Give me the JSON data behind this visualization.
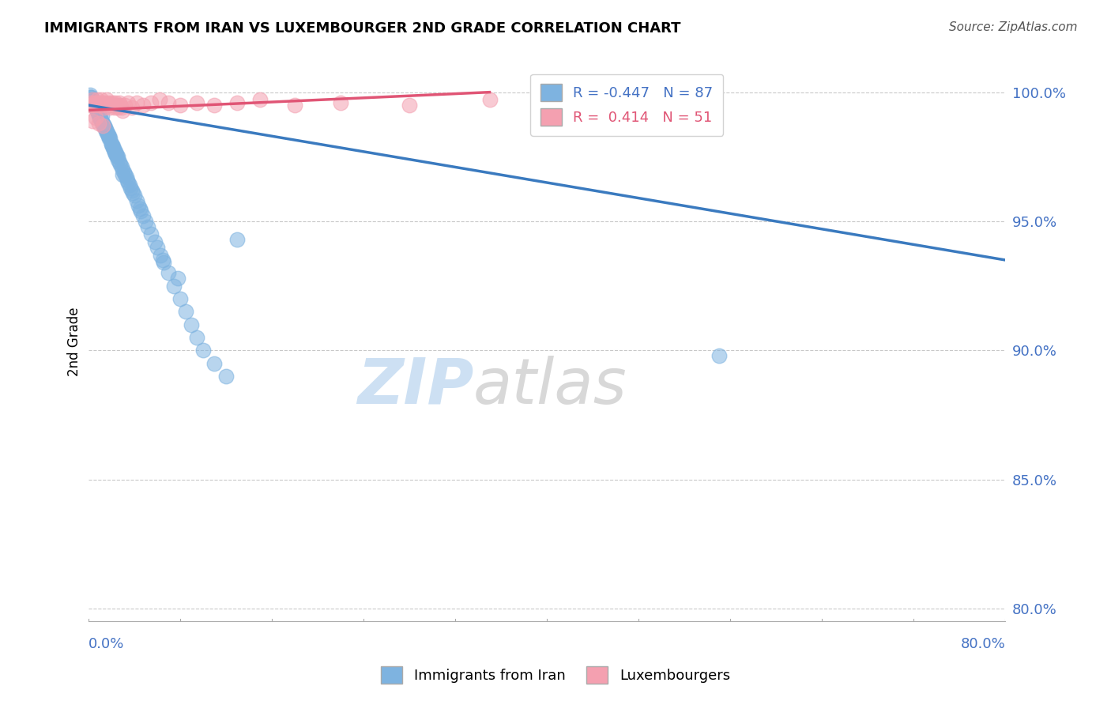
{
  "title": "IMMIGRANTS FROM IRAN VS LUXEMBOURGER 2ND GRADE CORRELATION CHART",
  "source": "Source: ZipAtlas.com",
  "ylabel": "2nd Grade",
  "yticks": [
    80.0,
    85.0,
    90.0,
    95.0,
    100.0
  ],
  "xlim": [
    0.0,
    80.0
  ],
  "ylim": [
    79.5,
    101.2
  ],
  "blue_R": -0.447,
  "blue_N": 87,
  "pink_R": 0.414,
  "pink_N": 51,
  "blue_color": "#7eb3e0",
  "pink_color": "#f4a0b0",
  "blue_line_color": "#3a7abf",
  "pink_line_color": "#e05575",
  "legend_label_blue": "Immigrants from Iran",
  "legend_label_pink": "Luxembourgers",
  "blue_trend_x": [
    0,
    80
  ],
  "blue_trend_y": [
    99.5,
    93.5
  ],
  "pink_trend_x": [
    0,
    35
  ],
  "pink_trend_y": [
    99.3,
    100.0
  ],
  "blue_scatter_x": [
    0.2,
    0.3,
    0.4,
    0.5,
    0.6,
    0.7,
    0.8,
    0.9,
    1.0,
    1.1,
    1.2,
    1.3,
    1.4,
    1.5,
    1.6,
    1.7,
    1.8,
    1.9,
    2.0,
    2.1,
    2.2,
    2.3,
    2.4,
    2.5,
    2.6,
    2.7,
    2.8,
    2.9,
    3.0,
    3.1,
    3.2,
    3.3,
    3.4,
    3.5,
    3.6,
    3.7,
    3.8,
    3.9,
    4.0,
    4.2,
    4.4,
    4.6,
    4.8,
    5.0,
    5.2,
    5.5,
    5.8,
    6.0,
    6.3,
    6.6,
    7.0,
    7.5,
    8.0,
    8.5,
    9.0,
    9.5,
    10.0,
    11.0,
    12.0,
    0.15,
    0.25,
    0.35,
    0.45,
    0.55,
    0.65,
    0.75,
    0.85,
    0.95,
    1.05,
    1.15,
    1.25,
    1.35,
    1.45,
    1.55,
    1.65,
    1.75,
    1.85,
    2.05,
    2.15,
    2.25,
    2.35,
    2.45,
    2.55,
    4.5,
    6.5,
    7.8,
    3.0,
    13.0,
    55.0
  ],
  "blue_scatter_y": [
    99.8,
    99.6,
    99.7,
    99.5,
    99.6,
    99.4,
    99.3,
    99.2,
    99.0,
    98.9,
    99.1,
    98.8,
    98.7,
    98.6,
    98.5,
    98.4,
    98.3,
    98.2,
    98.0,
    97.9,
    97.8,
    97.7,
    97.6,
    97.5,
    97.4,
    97.3,
    97.2,
    97.1,
    97.0,
    96.9,
    96.8,
    96.7,
    96.6,
    96.5,
    96.4,
    96.3,
    96.2,
    96.1,
    96.0,
    95.8,
    95.6,
    95.4,
    95.2,
    95.0,
    94.8,
    94.5,
    94.2,
    94.0,
    93.7,
    93.4,
    93.0,
    92.5,
    92.0,
    91.5,
    91.0,
    90.5,
    90.0,
    89.5,
    89.0,
    99.9,
    99.8,
    99.7,
    99.6,
    99.5,
    99.4,
    99.3,
    99.2,
    99.1,
    99.0,
    98.9,
    98.8,
    98.7,
    98.6,
    98.5,
    98.4,
    98.3,
    98.2,
    98.0,
    97.9,
    97.8,
    97.7,
    97.6,
    97.5,
    95.5,
    93.5,
    92.8,
    96.8,
    94.3,
    89.8
  ],
  "pink_scatter_x": [
    0.1,
    0.2,
    0.3,
    0.4,
    0.5,
    0.6,
    0.7,
    0.8,
    0.9,
    1.0,
    1.1,
    1.2,
    1.3,
    1.4,
    1.5,
    1.6,
    1.7,
    1.8,
    1.9,
    2.0,
    2.1,
    2.2,
    2.3,
    2.4,
    2.5,
    2.6,
    2.7,
    2.8,
    2.9,
    3.0,
    3.2,
    3.5,
    3.8,
    4.2,
    4.8,
    5.5,
    6.2,
    7.0,
    8.0,
    9.5,
    11.0,
    13.0,
    15.0,
    18.0,
    22.0,
    28.0,
    35.0,
    0.35,
    0.65,
    0.95,
    1.25
  ],
  "pink_scatter_y": [
    99.5,
    99.6,
    99.5,
    99.7,
    99.6,
    99.5,
    99.6,
    99.7,
    99.5,
    99.6,
    99.7,
    99.6,
    99.5,
    99.4,
    99.6,
    99.7,
    99.5,
    99.6,
    99.4,
    99.5,
    99.6,
    99.5,
    99.4,
    99.6,
    99.5,
    99.4,
    99.6,
    99.5,
    99.4,
    99.3,
    99.5,
    99.6,
    99.4,
    99.6,
    99.5,
    99.6,
    99.7,
    99.6,
    99.5,
    99.6,
    99.5,
    99.6,
    99.7,
    99.5,
    99.6,
    99.5,
    99.7,
    98.9,
    99.0,
    98.8,
    98.7
  ]
}
